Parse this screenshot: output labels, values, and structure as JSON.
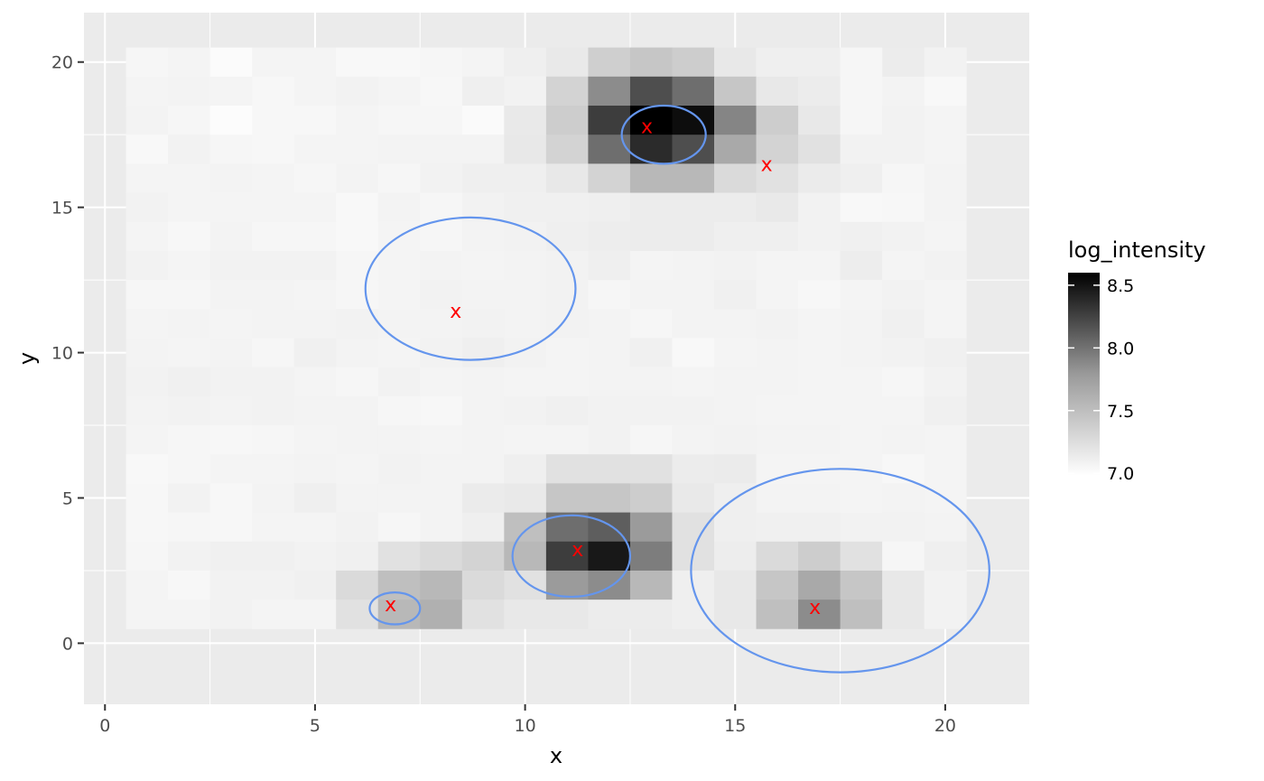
{
  "chart_data": {
    "type": "heatmap",
    "title": "",
    "xlabel": "x",
    "ylabel": "y",
    "xlim": [
      -0.5,
      22
    ],
    "ylim": [
      -2.1,
      21.7
    ],
    "x_ticks": [
      0,
      5,
      10,
      15,
      20
    ],
    "y_ticks": [
      0,
      5,
      10,
      15,
      20
    ],
    "grid": true,
    "legend": {
      "title": "log_intensity",
      "position": "right",
      "range": [
        6.98,
        8.6
      ],
      "ticks": [
        7.0,
        7.5,
        8.0,
        8.5
      ],
      "tick_labels": [
        "7.0",
        "7.5",
        "8.0",
        "8.5"
      ]
    },
    "tiles": {
      "x_centers": [
        1,
        2,
        3,
        4,
        5,
        6,
        7,
        8,
        9,
        10,
        11,
        12,
        13,
        14,
        15,
        16,
        17,
        18,
        19,
        20
      ],
      "y_centers": [
        1,
        2,
        3,
        4,
        5,
        6,
        7,
        8,
        9,
        10,
        11,
        12,
        13,
        14,
        15,
        16,
        17,
        18,
        19,
        20
      ],
      "rows_top_to_bottom": [
        [
          7.05,
          7.06,
          7.01,
          7.06,
          7.06,
          7.03,
          7.03,
          7.05,
          7.06,
          7.1,
          7.14,
          7.33,
          7.4,
          7.35,
          7.15,
          7.1,
          7.1,
          7.05,
          7.12,
          7.08
        ],
        [
          7.06,
          7.07,
          7.06,
          7.04,
          7.06,
          7.08,
          7.06,
          7.04,
          7.1,
          7.08,
          7.3,
          7.8,
          8.2,
          8.0,
          7.4,
          7.15,
          7.12,
          7.05,
          7.07,
          7.03
        ],
        [
          7.07,
          7.05,
          7.0,
          7.04,
          7.04,
          7.06,
          7.05,
          7.05,
          7.02,
          7.14,
          7.35,
          8.3,
          8.6,
          8.55,
          7.85,
          7.35,
          7.15,
          7.05,
          7.08,
          7.06
        ],
        [
          7.03,
          7.08,
          7.05,
          7.04,
          7.06,
          7.06,
          7.07,
          7.07,
          7.07,
          7.15,
          7.3,
          8.0,
          8.4,
          8.2,
          7.6,
          7.3,
          7.2,
          7.08,
          7.08,
          7.06
        ],
        [
          7.06,
          7.06,
          7.07,
          7.06,
          7.05,
          7.07,
          7.05,
          7.08,
          7.1,
          7.1,
          7.15,
          7.3,
          7.5,
          7.5,
          7.25,
          7.2,
          7.13,
          7.1,
          7.05,
          7.07
        ],
        [
          7.08,
          7.06,
          7.06,
          7.06,
          7.06,
          7.03,
          7.07,
          7.05,
          7.08,
          7.09,
          7.09,
          7.1,
          7.12,
          7.12,
          7.12,
          7.14,
          7.08,
          7.03,
          7.04,
          7.07
        ],
        [
          7.06,
          7.04,
          7.07,
          7.05,
          7.05,
          7.03,
          7.06,
          7.05,
          7.07,
          7.08,
          7.1,
          7.11,
          7.12,
          7.12,
          7.1,
          7.1,
          7.08,
          7.09,
          7.08,
          7.06
        ],
        [
          7.08,
          7.06,
          7.08,
          7.08,
          7.08,
          7.05,
          7.06,
          7.07,
          7.06,
          7.07,
          7.08,
          7.1,
          7.06,
          7.07,
          7.08,
          7.06,
          7.06,
          7.11,
          7.06,
          7.08
        ],
        [
          7.05,
          7.05,
          7.07,
          7.07,
          7.06,
          7.05,
          7.06,
          7.08,
          7.07,
          7.07,
          7.08,
          7.05,
          7.07,
          7.07,
          7.09,
          7.06,
          7.04,
          7.06,
          7.08,
          7.06
        ],
        [
          7.06,
          7.07,
          7.06,
          7.07,
          7.07,
          7.08,
          7.07,
          7.07,
          7.08,
          7.07,
          7.08,
          7.07,
          7.05,
          7.07,
          7.07,
          7.08,
          7.06,
          7.07,
          7.09,
          7.06
        ],
        [
          7.07,
          7.06,
          7.07,
          7.05,
          7.09,
          7.07,
          7.06,
          7.08,
          7.1,
          7.08,
          7.06,
          7.07,
          7.09,
          7.03,
          7.06,
          7.07,
          7.06,
          7.07,
          7.08,
          7.09
        ],
        [
          7.08,
          7.09,
          7.08,
          7.08,
          7.06,
          7.05,
          7.08,
          7.06,
          7.07,
          7.06,
          7.06,
          7.07,
          7.07,
          7.06,
          7.07,
          7.07,
          7.06,
          7.06,
          7.05,
          7.08
        ],
        [
          7.07,
          7.08,
          7.07,
          7.08,
          7.07,
          7.07,
          7.05,
          7.04,
          7.07,
          7.08,
          7.09,
          7.08,
          7.08,
          7.08,
          7.07,
          7.06,
          7.06,
          7.06,
          7.06,
          7.09
        ],
        [
          7.06,
          7.05,
          7.04,
          7.05,
          7.06,
          7.07,
          7.07,
          7.06,
          7.07,
          7.06,
          7.06,
          7.08,
          7.05,
          7.07,
          7.08,
          7.07,
          7.07,
          7.06,
          7.07,
          7.06
        ],
        [
          7.03,
          7.05,
          7.06,
          7.06,
          7.07,
          7.06,
          7.08,
          7.07,
          7.07,
          7.1,
          7.2,
          7.2,
          7.2,
          7.12,
          7.13,
          7.06,
          7.06,
          7.06,
          7.04,
          7.06
        ],
        [
          7.04,
          7.08,
          7.04,
          7.07,
          7.1,
          7.07,
          7.07,
          7.07,
          7.13,
          7.14,
          7.4,
          7.4,
          7.35,
          7.14,
          7.1,
          7.07,
          7.07,
          7.06,
          7.07,
          7.06
        ],
        [
          7.04,
          7.05,
          7.04,
          7.06,
          7.06,
          7.08,
          7.05,
          7.07,
          7.1,
          7.45,
          8.0,
          8.1,
          7.7,
          7.2,
          7.1,
          7.09,
          7.09,
          7.08,
          7.08,
          7.07
        ],
        [
          7.05,
          7.08,
          7.09,
          7.09,
          7.08,
          7.09,
          7.2,
          7.25,
          7.3,
          7.5,
          8.3,
          8.5,
          7.9,
          7.2,
          7.11,
          7.25,
          7.35,
          7.2,
          7.05,
          7.1
        ],
        [
          7.06,
          7.04,
          7.08,
          7.08,
          7.09,
          7.25,
          7.45,
          7.5,
          7.25,
          7.2,
          7.7,
          7.8,
          7.5,
          7.1,
          7.15,
          7.4,
          7.6,
          7.4,
          7.15,
          7.08
        ],
        [
          7.06,
          7.06,
          7.08,
          7.06,
          7.06,
          7.2,
          7.5,
          7.55,
          7.2,
          7.15,
          7.15,
          7.12,
          7.12,
          7.1,
          7.15,
          7.45,
          7.8,
          7.45,
          7.15,
          7.08
        ]
      ]
    },
    "circles": [
      {
        "cx": 13.3,
        "cy": 17.5,
        "rx": 1.0,
        "ry": 1.0
      },
      {
        "cx": 8.7,
        "cy": 12.2,
        "rx": 2.5,
        "ry": 2.45
      },
      {
        "cx": 11.1,
        "cy": 3.0,
        "rx": 1.4,
        "ry": 1.4
      },
      {
        "cx": 6.9,
        "cy": 1.2,
        "rx": 0.6,
        "ry": 0.55
      },
      {
        "cx": 17.5,
        "cy": 2.5,
        "rx": 3.55,
        "ry": 3.5
      }
    ],
    "circle_color": "#6495ED",
    "markers": [
      {
        "x": 12.9,
        "y": 17.8,
        "label": "x"
      },
      {
        "x": 15.75,
        "y": 16.5,
        "label": "x"
      },
      {
        "x": 8.35,
        "y": 11.45,
        "label": "x"
      },
      {
        "x": 11.25,
        "y": 3.25,
        "label": "x"
      },
      {
        "x": 6.8,
        "y": 1.35,
        "label": "x"
      },
      {
        "x": 16.9,
        "y": 1.25,
        "label": "x"
      }
    ],
    "marker_color": "#FF0000",
    "panel_background": "#EBEBEB",
    "grid_color": "#FFFFFF"
  }
}
